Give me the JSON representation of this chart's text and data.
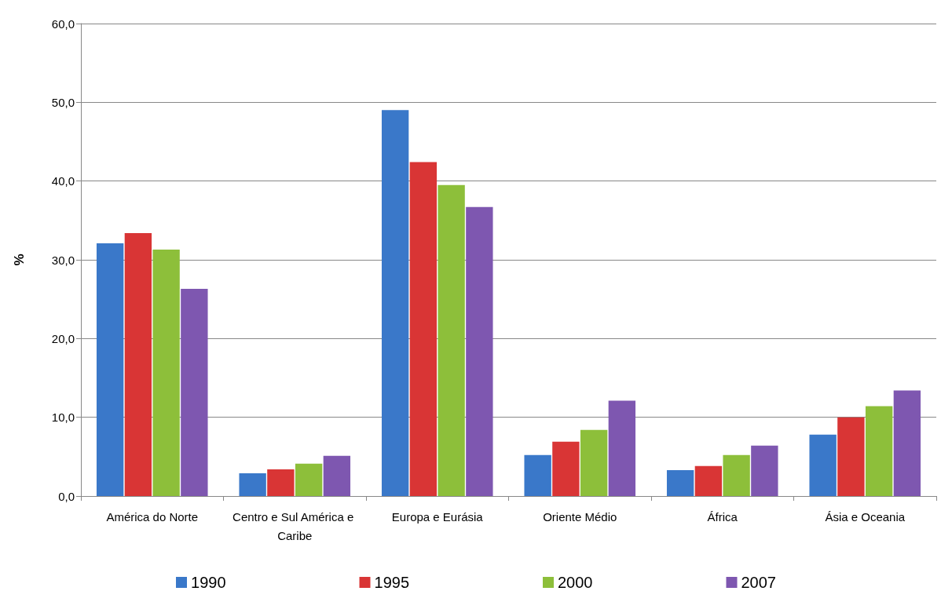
{
  "chart_data": {
    "type": "bar",
    "ylabel": "%",
    "categories": [
      "América do Norte",
      "Centro e Sul América e Caribe",
      "Europa e Eurásia",
      "Oriente Médio",
      "África",
      "Ásia e Oceania"
    ],
    "series": [
      {
        "name": "1990",
        "color": "#3a78c9",
        "values": [
          32.1,
          2.9,
          49.0,
          5.2,
          3.3,
          7.8
        ]
      },
      {
        "name": "1995",
        "color": "#d93535",
        "values": [
          33.4,
          3.4,
          42.4,
          6.9,
          3.8,
          10.0
        ]
      },
      {
        "name": "2000",
        "color": "#8dbf3a",
        "values": [
          31.3,
          4.1,
          39.5,
          8.4,
          5.2,
          11.4
        ]
      },
      {
        "name": "2007",
        "color": "#7e57b0",
        "values": [
          26.3,
          5.1,
          36.7,
          12.1,
          6.4,
          13.4
        ]
      }
    ],
    "ylim": [
      0,
      60
    ],
    "yticks": [
      {
        "value": 0,
        "label": "0,0"
      },
      {
        "value": 10,
        "label": "10,0"
      },
      {
        "value": 20,
        "label": "20,0"
      },
      {
        "value": 30,
        "label": "30,0"
      },
      {
        "value": 40,
        "label": "40,0"
      },
      {
        "value": 50,
        "label": "50,0"
      },
      {
        "value": 60,
        "label": "60,0"
      }
    ],
    "grid": "y",
    "legend": "bottom"
  }
}
